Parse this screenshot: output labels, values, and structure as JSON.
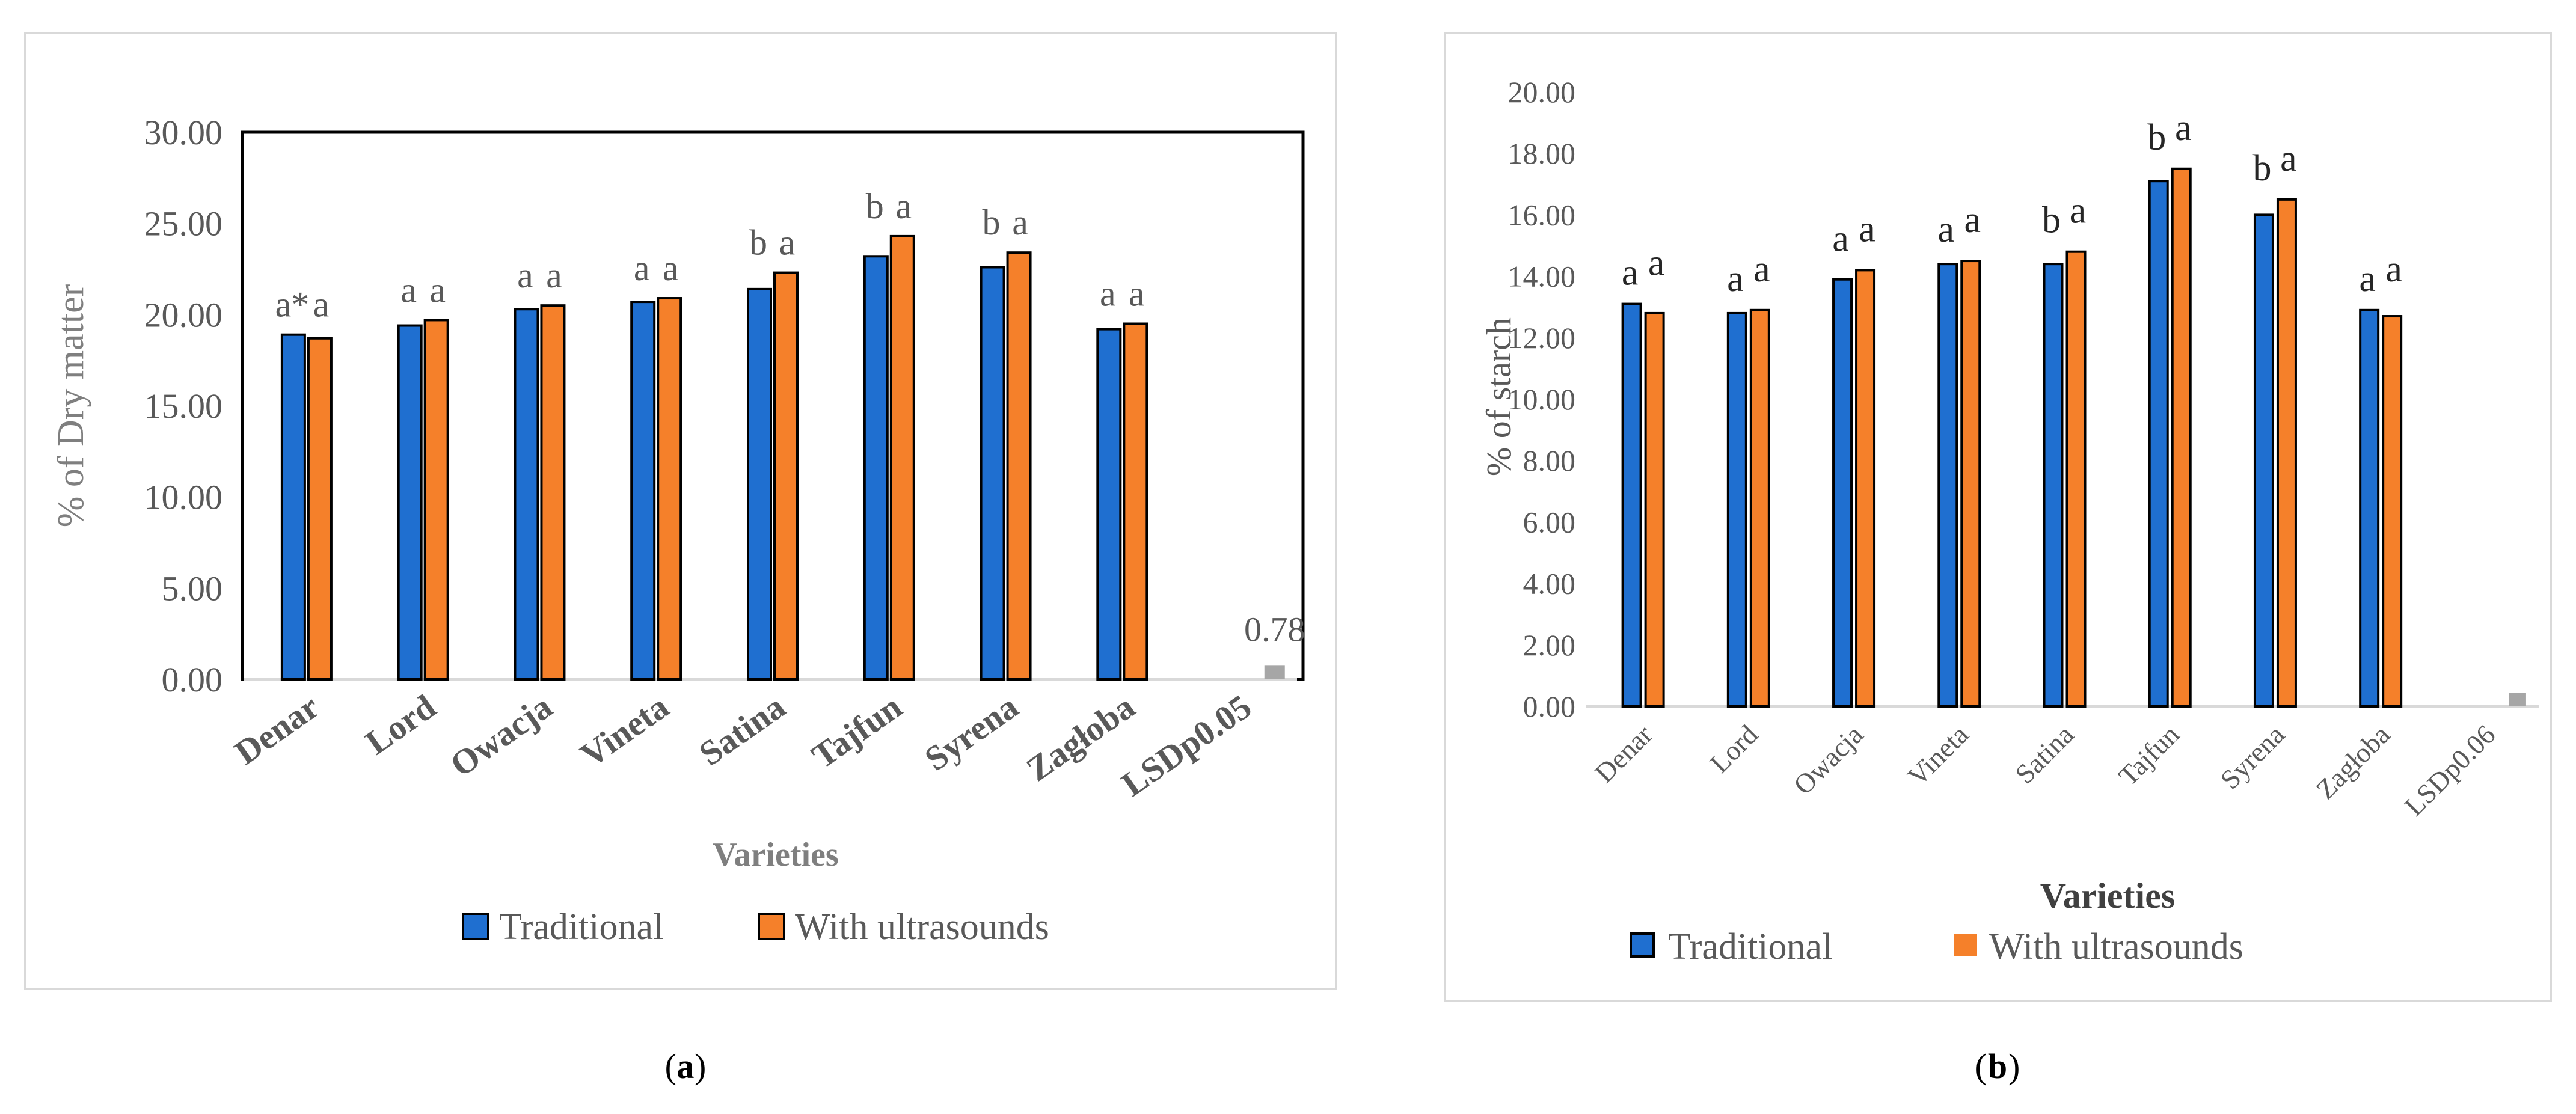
{
  "colors": {
    "traditional": "#1f6fd0",
    "ultrasound": "#f5802a",
    "lsd": "#a6a6a6",
    "bar_outline": "#000000"
  },
  "legend": {
    "series_1": "Traditional",
    "series_2": "With ultrasounds"
  },
  "panel_labels": [
    "a",
    "b"
  ],
  "chart_data": [
    {
      "type": "bar",
      "panel": "a",
      "title": "",
      "xlabel": "Varieties",
      "ylabel": "% of Dry matter",
      "ylim": [
        0,
        30
      ],
      "yticks": [
        "0.00",
        "5.00",
        "10.00",
        "15.00",
        "20.00",
        "25.00",
        "30.00"
      ],
      "categories": [
        "Denar",
        "Lord",
        "Owacja",
        "Vineta",
        "Satina",
        "Tajfun",
        "Syrena",
        "Zagłoba",
        "LSDp0.05"
      ],
      "series": [
        {
          "name": "Traditional",
          "values": [
            18.9,
            19.4,
            20.3,
            20.7,
            21.4,
            23.2,
            22.6,
            19.2,
            null
          ]
        },
        {
          "name": "With ultrasounds",
          "values": [
            18.7,
            19.7,
            20.5,
            20.9,
            22.3,
            24.3,
            23.4,
            19.5,
            null
          ]
        }
      ],
      "lsd": {
        "value": 0.78,
        "label": "0.78"
      },
      "significance": [
        [
          "a*",
          "a"
        ],
        [
          "a",
          "a"
        ],
        [
          "a",
          "a"
        ],
        [
          "a",
          "a"
        ],
        [
          "b",
          "a"
        ],
        [
          "b",
          "a"
        ],
        [
          "b",
          "a"
        ],
        [
          "a",
          "a"
        ]
      ]
    },
    {
      "type": "bar",
      "panel": "b",
      "title": "",
      "xlabel": "Varieties",
      "ylabel": "% of starch",
      "ylim": [
        0,
        20
      ],
      "yticks": [
        "0.00",
        "2.00",
        "4.00",
        "6.00",
        "8.00",
        "10.00",
        "12.00",
        "14.00",
        "16.00",
        "18.00",
        "20.00"
      ],
      "categories": [
        "Denar",
        "Lord",
        "Owacja",
        "Vineta",
        "Satina",
        "Tajfun",
        "Syrena",
        "Zagłoba",
        "LSDp0.06"
      ],
      "series": [
        {
          "name": "Traditional",
          "values": [
            13.1,
            12.8,
            13.9,
            14.4,
            14.4,
            17.1,
            16.0,
            12.9,
            null
          ]
        },
        {
          "name": "With ultrasounds",
          "values": [
            12.8,
            12.9,
            14.2,
            14.5,
            14.8,
            17.5,
            16.5,
            12.7,
            null
          ]
        }
      ],
      "lsd": {
        "value": 0.44
      },
      "significance": [
        [
          "a",
          "a"
        ],
        [
          "a",
          "a"
        ],
        [
          "a",
          "a"
        ],
        [
          "a",
          "a"
        ],
        [
          "b",
          "a"
        ],
        [
          "b",
          "a"
        ],
        [
          "b",
          "a"
        ],
        [
          "a",
          "a"
        ]
      ]
    }
  ]
}
